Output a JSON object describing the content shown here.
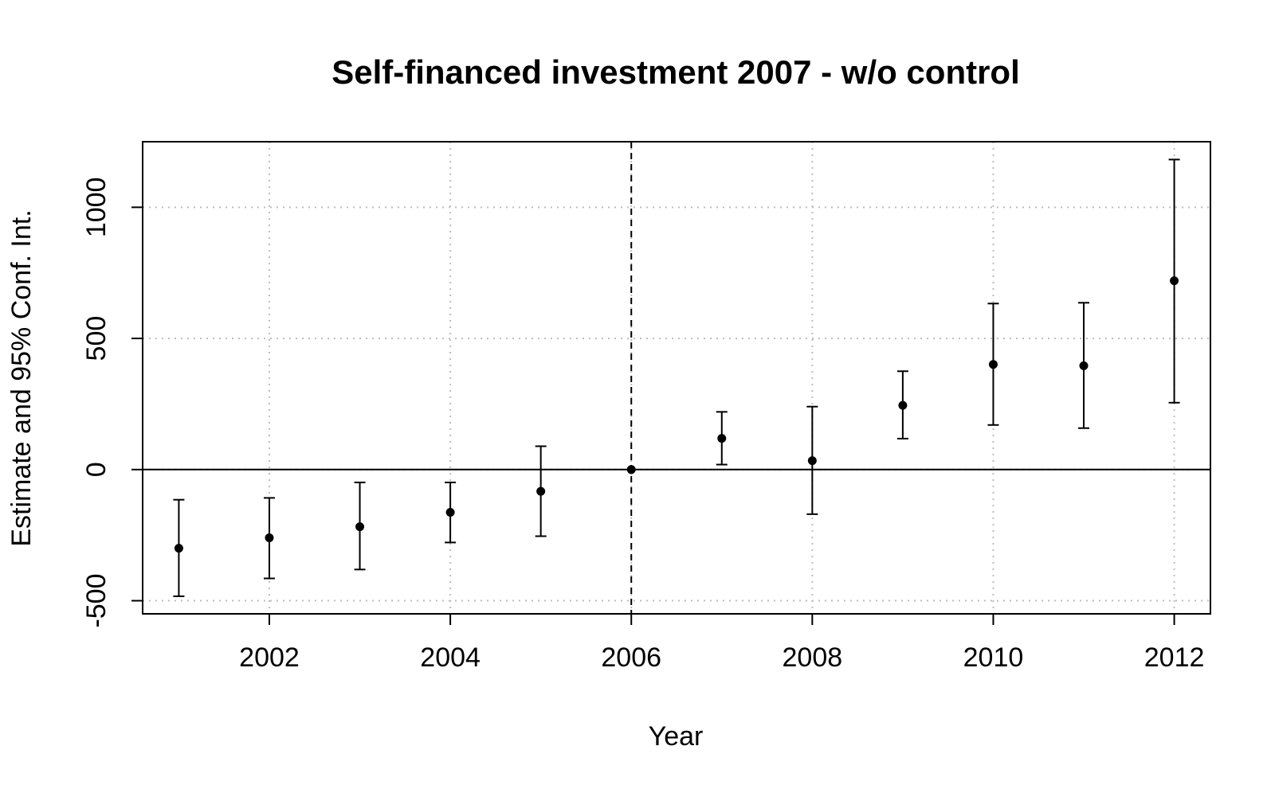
{
  "chart_data": {
    "type": "scatter",
    "title": "Self-financed investment 2007 - w/o control",
    "xlabel": "Year",
    "ylabel": "Estimate and 95% Conf. Int.",
    "xlim": [
      2000.6,
      2012.4
    ],
    "ylim": [
      -550,
      1250
    ],
    "x_ticks": [
      2002,
      2004,
      2006,
      2008,
      2010,
      2012
    ],
    "y_ticks": [
      -500,
      0,
      500,
      1000
    ],
    "grid": true,
    "reference_lines": {
      "horizontal_y": 0,
      "vertical_x": 2006
    },
    "series": [
      {
        "x": [
          2001,
          2002,
          2003,
          2004,
          2005,
          2006,
          2007,
          2008,
          2009,
          2010,
          2011,
          2012
        ],
        "y": [
          -300,
          -260,
          -218,
          -163,
          -83,
          0,
          119,
          34,
          245,
          401,
          396,
          720
        ],
        "lower": [
          -483,
          -415,
          -381,
          -278,
          -254,
          0,
          19,
          -170,
          118,
          170,
          158,
          255
        ],
        "upper": [
          -115,
          -108,
          -49,
          -49,
          89,
          0,
          220,
          240,
          375,
          633,
          636,
          1182
        ]
      }
    ],
    "colors": {
      "points": "#000000",
      "grid": "#bdbdbd",
      "frame": "#000000"
    }
  }
}
